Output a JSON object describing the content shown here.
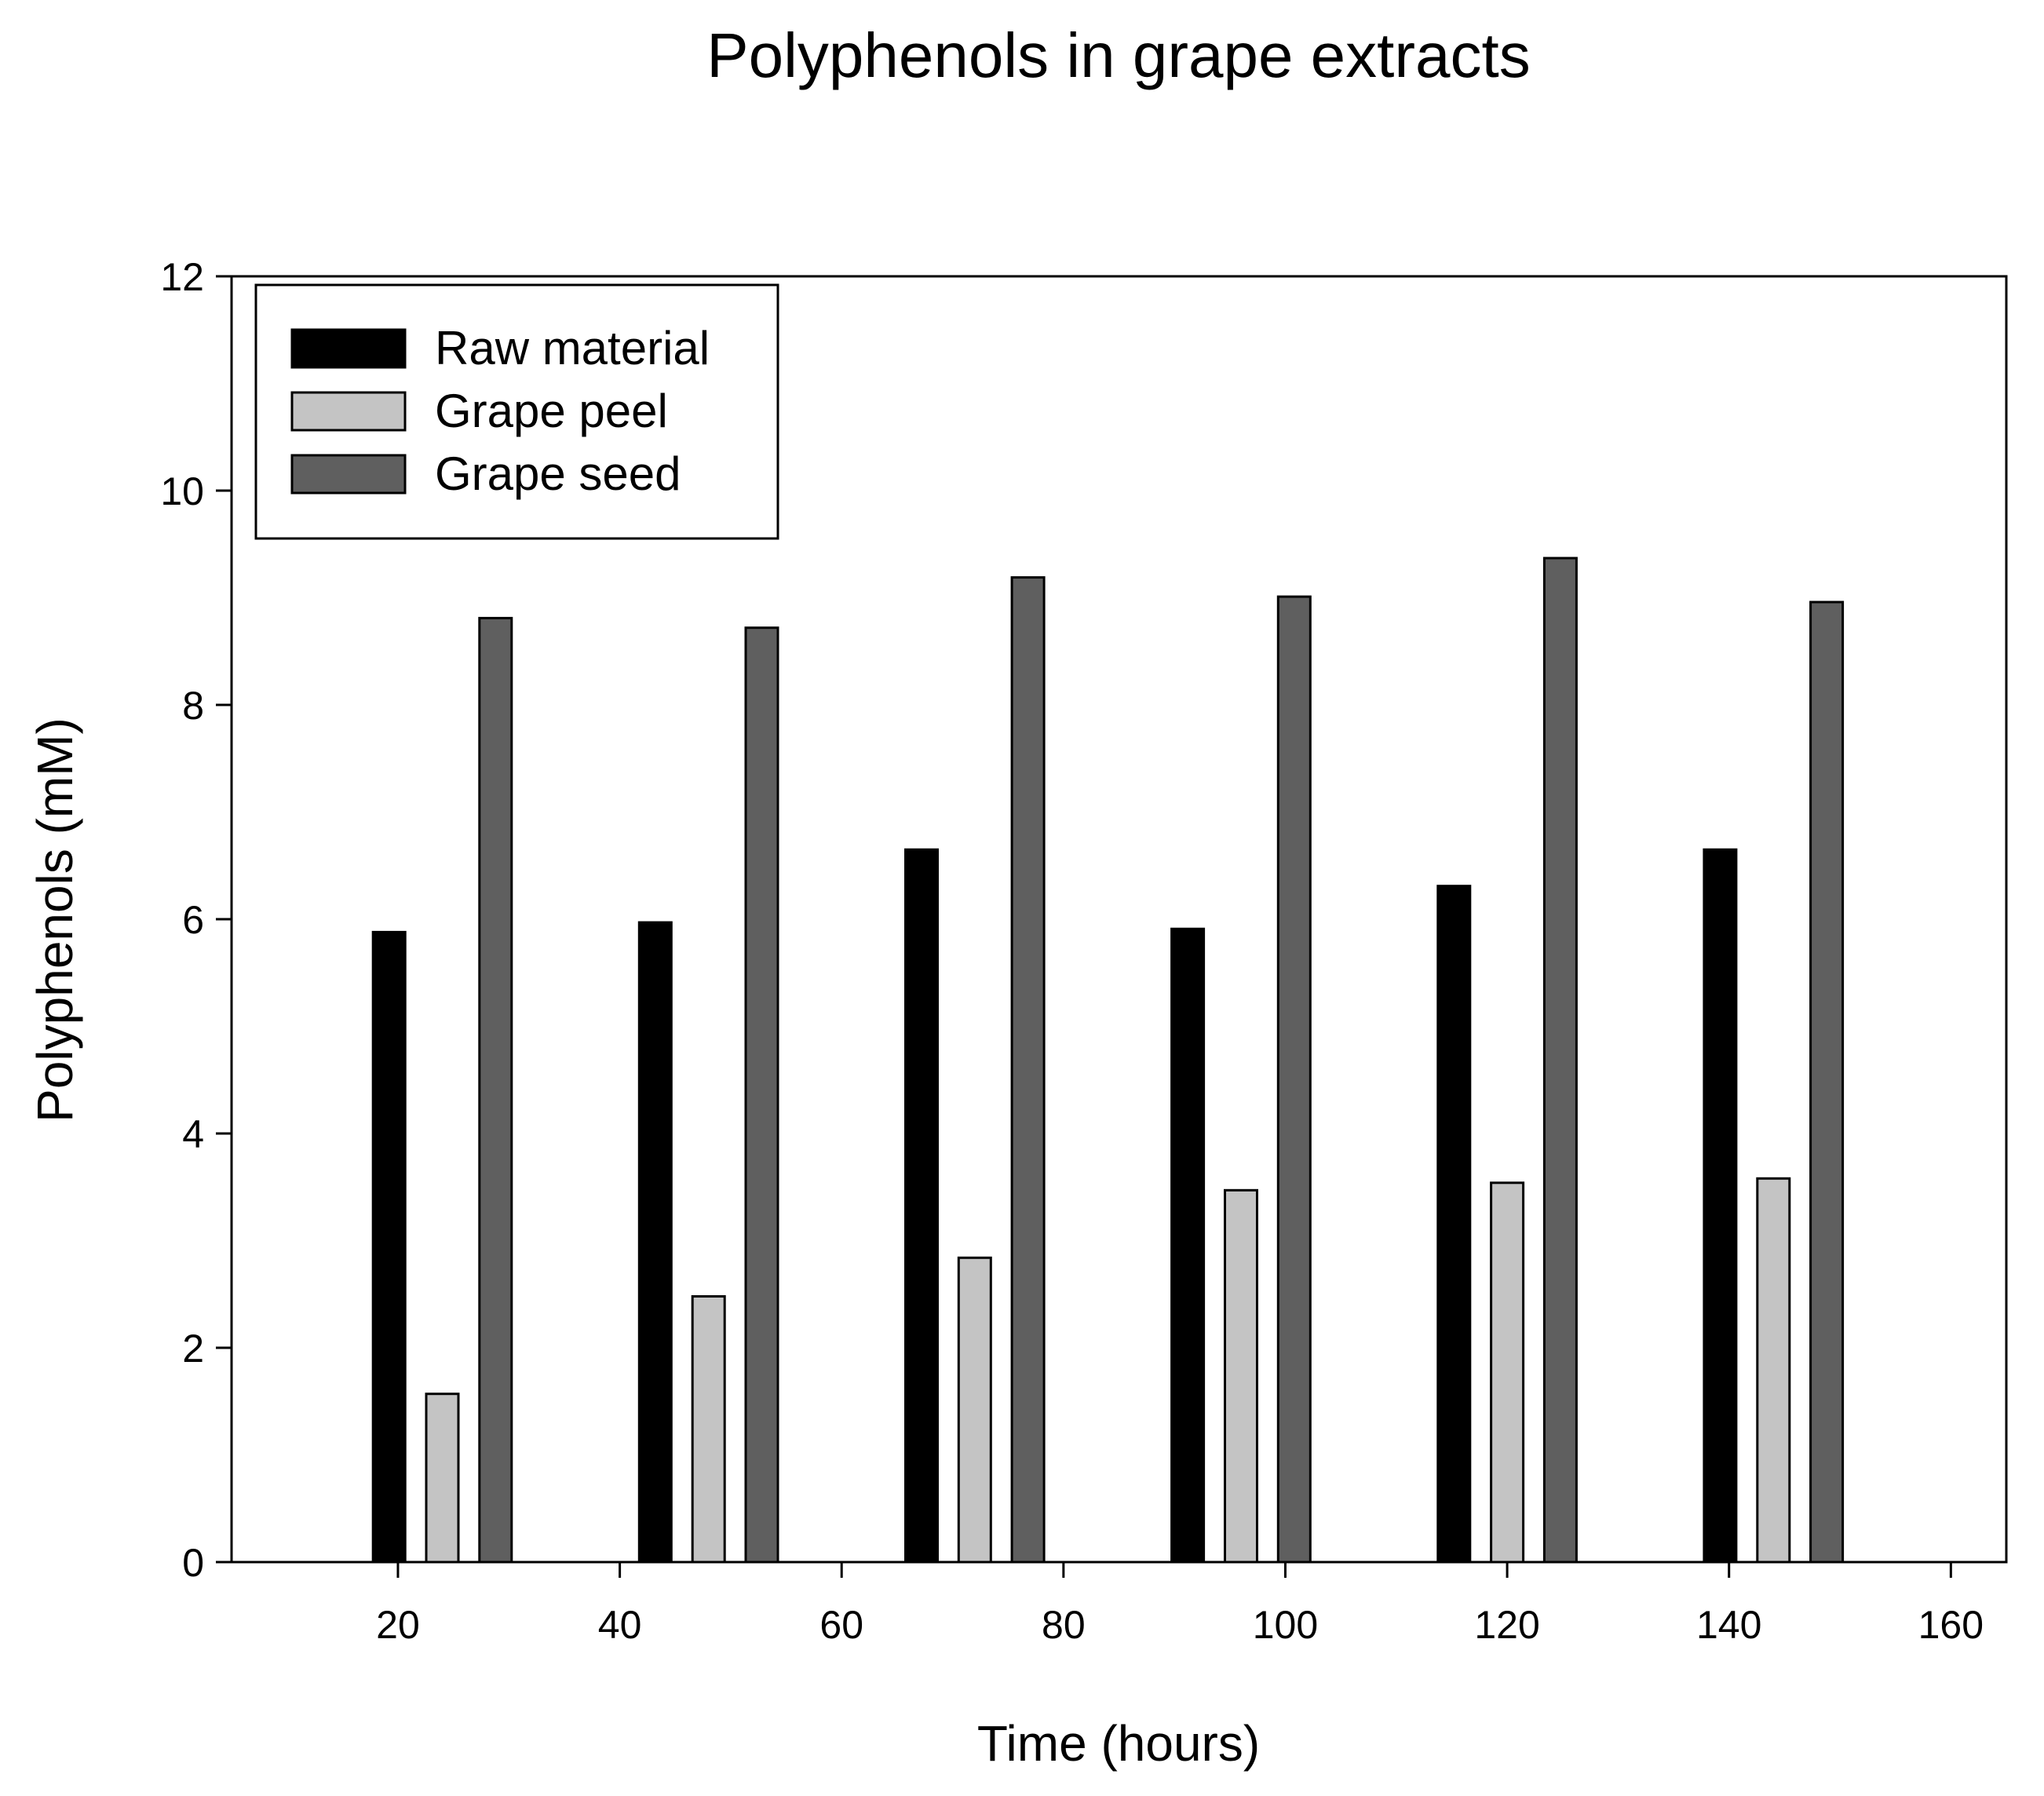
{
  "chart_data": {
    "type": "bar",
    "title": "Polyphenols in grape extracts",
    "xlabel": "Time (hours)",
    "ylabel": "Polyphenols (mM)",
    "xlim": [
      5,
      165
    ],
    "ylim": [
      0,
      12
    ],
    "xticks": [
      20,
      40,
      60,
      80,
      100,
      120,
      140,
      160
    ],
    "yticks": [
      0,
      2,
      4,
      6,
      8,
      10,
      12
    ],
    "grid": false,
    "legend_position": "top-left",
    "categories": [
      24,
      48,
      72,
      96,
      120,
      144
    ],
    "series": [
      {
        "name": "Raw material",
        "color": "#000000",
        "offset_hours": -4.8,
        "values": [
          5.88,
          5.97,
          6.65,
          5.91,
          6.31,
          6.65
        ]
      },
      {
        "name": "Grape peel",
        "color": "#c4c4c4",
        "offset_hours": 0,
        "values": [
          1.57,
          2.48,
          2.84,
          3.47,
          3.54,
          3.58
        ]
      },
      {
        "name": "Grape seed",
        "color": "#5f5f5f",
        "offset_hours": 4.8,
        "values": [
          8.81,
          8.72,
          9.19,
          9.01,
          9.37,
          8.96
        ]
      }
    ],
    "bar_width_hours": 2.9
  }
}
